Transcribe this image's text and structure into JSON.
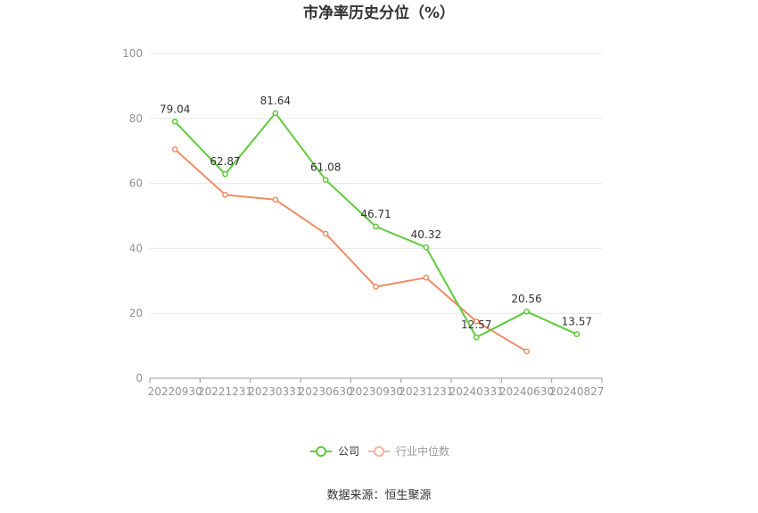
{
  "chart_data": {
    "type": "line",
    "title": "市净率历史分位（%）",
    "categories": [
      "20220930",
      "20221231",
      "20230331",
      "20230630",
      "20230930",
      "20231231",
      "20240331",
      "20240630",
      "20240827"
    ],
    "ylim": [
      0,
      100
    ],
    "yticks": [
      0,
      20,
      40,
      60,
      80,
      100
    ],
    "grid": true,
    "legend_position": "bottom",
    "series": [
      {
        "name": "公司",
        "color": "#5fcb3a",
        "values": [
          79.04,
          62.87,
          81.64,
          61.08,
          46.71,
          40.32,
          12.57,
          20.56,
          13.57
        ],
        "labels": [
          "79.04",
          "62.87",
          "81.64",
          "61.08",
          "46.71",
          "40.32",
          "12.57",
          "20.56",
          "13.57"
        ]
      },
      {
        "name": "行业中位数",
        "color": "#f08c65",
        "values": [
          70.5,
          56.5,
          55.0,
          44.5,
          28.2,
          31.0,
          17.5,
          8.3,
          null
        ]
      }
    ]
  },
  "source_text": "数据来源：恒生聚源",
  "colors": {
    "company": "#5fcb3a",
    "industry": "#f08c65",
    "grid": "#e4e7ed",
    "axis": "#999999"
  }
}
